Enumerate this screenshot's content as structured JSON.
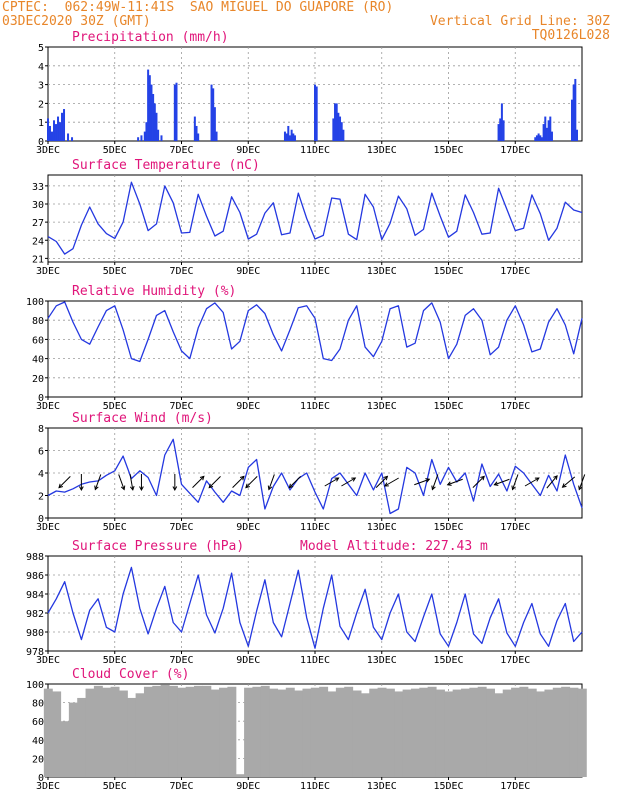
{
  "header": {
    "line1": "CPTEC:  062:49W-11:41S  SAO MIGUEL DO GUAPORE (RO)",
    "line2": "03DEC2020 30Z (GMT)",
    "grid_note": "Vertical Grid Line: 30Z",
    "code": "TQ0126L028"
  },
  "colors": {
    "header": "#e8862a",
    "title": "#e0157a",
    "series": "#2438e0",
    "bars": "#2442e6",
    "cloud": "#a9a9a9",
    "wind_arrow": "#000000",
    "grid": "#9a9a9a"
  },
  "model_altitude": "Model Altitude: 227.43 m",
  "x_ticks": [
    "3DEC",
    "5DEC",
    "7DEC",
    "9DEC",
    "11DEC",
    "13DEC",
    "15DEC",
    "17DEC"
  ],
  "chart_data": [
    {
      "type": "bar",
      "title": "Precipitation (mm/h)",
      "ylim": [
        0,
        5
      ],
      "yticks": [
        0,
        1,
        2,
        3,
        4,
        5
      ],
      "x_days": [
        0.0,
        0.06,
        0.12,
        0.18,
        0.24,
        0.3,
        0.36,
        0.42,
        0.48,
        0.6,
        0.72,
        2.7,
        2.8,
        2.9,
        2.95,
        3.0,
        3.05,
        3.1,
        3.15,
        3.2,
        3.25,
        3.3,
        3.4,
        3.8,
        3.85,
        4.4,
        4.45,
        4.5,
        4.9,
        4.95,
        5.0,
        5.05,
        7.1,
        7.15,
        7.2,
        7.25,
        7.3,
        7.35,
        7.4,
        8.0,
        8.05,
        8.55,
        8.6,
        8.65,
        8.7,
        8.75,
        8.8,
        8.85,
        13.5,
        13.55,
        13.6,
        13.65,
        14.6,
        14.65,
        14.7,
        14.75,
        14.8,
        14.85,
        14.9,
        14.95,
        15.0,
        15.05,
        15.1,
        15.7,
        15.75,
        15.8,
        15.85
      ],
      "values": [
        1.2,
        0.8,
        0.5,
        1.1,
        0.9,
        1.3,
        1.0,
        1.5,
        1.7,
        0.4,
        0.2,
        0.2,
        0.3,
        0.5,
        1.0,
        3.8,
        3.5,
        3.0,
        2.5,
        2.0,
        1.5,
        0.6,
        0.3,
        3.0,
        3.1,
        1.3,
        0.8,
        0.4,
        3.0,
        2.8,
        1.8,
        0.5,
        0.5,
        0.4,
        0.8,
        0.3,
        0.6,
        0.4,
        0.3,
        3.0,
        2.9,
        1.2,
        2.0,
        2.0,
        1.5,
        1.3,
        1.0,
        0.6,
        0.9,
        1.2,
        2.0,
        1.1,
        0.2,
        0.3,
        0.4,
        0.3,
        0.2,
        0.9,
        1.3,
        0.7,
        1.1,
        1.3,
        0.5,
        2.2,
        3.0,
        3.3,
        0.6
      ]
    },
    {
      "type": "line",
      "title": "Surface Temperature (nC)",
      "ylim": [
        20.4,
        34.8
      ],
      "yticks": [
        21,
        24,
        27,
        30,
        33
      ],
      "x_days": [
        0.0,
        0.25,
        0.5,
        0.75,
        1.0,
        1.25,
        1.5,
        1.75,
        2.0,
        2.25,
        2.5,
        2.75,
        3.0,
        3.25,
        3.5,
        3.75,
        4.0,
        4.25,
        4.5,
        4.75,
        5.0,
        5.25,
        5.5,
        5.75,
        6.0,
        6.25,
        6.5,
        6.75,
        7.0,
        7.25,
        7.5,
        7.75,
        8.0,
        8.25,
        8.5,
        8.75,
        9.0,
        9.25,
        9.5,
        9.75,
        10.0,
        10.25,
        10.5,
        10.75,
        11.0,
        11.25,
        11.5,
        11.75,
        12.0,
        12.25,
        12.5,
        12.75,
        13.0,
        13.25,
        13.5,
        13.75,
        14.0,
        14.25,
        14.5,
        14.75,
        15.0,
        15.25,
        15.5,
        15.75,
        16.0
      ],
      "values": [
        24.6,
        23.8,
        21.7,
        22.6,
        26.5,
        29.5,
        26.7,
        25.1,
        24.3,
        27.0,
        33.6,
        30.0,
        25.6,
        26.7,
        33.0,
        30.2,
        25.2,
        25.3,
        31.6,
        28.0,
        24.7,
        25.5,
        31.2,
        28.6,
        24.2,
        25.0,
        28.5,
        30.2,
        24.9,
        25.2,
        31.8,
        27.6,
        24.2,
        24.8,
        31.0,
        30.8,
        25.0,
        24.1,
        31.6,
        29.5,
        24.1,
        26.8,
        31.3,
        29.2,
        24.8,
        25.8,
        31.8,
        28.0,
        24.5,
        25.5,
        31.5,
        28.6,
        25.0,
        25.2,
        32.6,
        29.1,
        25.6,
        26.0,
        31.5,
        28.4,
        24.0,
        26.0,
        30.3,
        29.0,
        28.6
      ]
    },
    {
      "type": "line",
      "title": "Relative Humidity (%)",
      "ylim": [
        0,
        100
      ],
      "yticks": [
        0,
        20,
        40,
        60,
        80,
        100
      ],
      "x_days": [
        0.0,
        0.25,
        0.5,
        0.75,
        1.0,
        1.25,
        1.5,
        1.75,
        2.0,
        2.25,
        2.5,
        2.75,
        3.0,
        3.25,
        3.5,
        3.75,
        4.0,
        4.25,
        4.5,
        4.75,
        5.0,
        5.25,
        5.5,
        5.75,
        6.0,
        6.25,
        6.5,
        6.75,
        7.0,
        7.25,
        7.5,
        7.75,
        8.0,
        8.25,
        8.5,
        8.75,
        9.0,
        9.25,
        9.5,
        9.75,
        10.0,
        10.25,
        10.5,
        10.75,
        11.0,
        11.25,
        11.5,
        11.75,
        12.0,
        12.25,
        12.5,
        12.75,
        13.0,
        13.25,
        13.5,
        13.75,
        14.0,
        14.25,
        14.5,
        14.75,
        15.0,
        15.25,
        15.5,
        15.75,
        16.0
      ],
      "values": [
        82,
        95,
        99,
        78,
        60,
        55,
        73,
        90,
        95,
        70,
        40,
        37,
        60,
        85,
        90,
        68,
        48,
        40,
        72,
        92,
        98,
        88,
        50,
        58,
        90,
        96,
        87,
        65,
        48,
        70,
        93,
        95,
        82,
        40,
        38,
        50,
        80,
        95,
        52,
        42,
        58,
        92,
        95,
        52,
        56,
        90,
        98,
        78,
        40,
        55,
        85,
        92,
        80,
        44,
        52,
        80,
        95,
        75,
        47,
        50,
        78,
        92,
        75,
        45,
        82
      ]
    },
    {
      "type": "line",
      "title": "Surface Wind (m/s)",
      "ylim": [
        0,
        8
      ],
      "yticks": [
        0,
        2,
        4,
        6,
        8
      ],
      "x_days": [
        0.0,
        0.25,
        0.5,
        0.75,
        1.0,
        1.25,
        1.5,
        1.75,
        2.0,
        2.25,
        2.5,
        2.75,
        3.0,
        3.25,
        3.5,
        3.75,
        4.0,
        4.25,
        4.5,
        4.75,
        5.0,
        5.25,
        5.5,
        5.75,
        6.0,
        6.25,
        6.5,
        6.75,
        7.0,
        7.25,
        7.5,
        7.75,
        8.0,
        8.25,
        8.5,
        8.75,
        9.0,
        9.25,
        9.5,
        9.75,
        10.0,
        10.25,
        10.5,
        10.75,
        11.0,
        11.25,
        11.5,
        11.75,
        12.0,
        12.25,
        12.5,
        12.75,
        13.0,
        13.25,
        13.5,
        13.75,
        14.0,
        14.25,
        14.5,
        14.75,
        15.0,
        15.25,
        15.5,
        15.75,
        16.0
      ],
      "values": [
        2.0,
        2.4,
        2.3,
        2.6,
        3.0,
        3.2,
        3.3,
        3.8,
        4.2,
        5.5,
        3.5,
        4.2,
        3.6,
        2.0,
        5.6,
        7.0,
        3.0,
        2.2,
        1.4,
        3.3,
        2.3,
        1.4,
        2.4,
        2.0,
        4.5,
        5.2,
        0.8,
        2.8,
        4.0,
        2.5,
        3.5,
        4.0,
        2.3,
        0.8,
        3.5,
        4.0,
        3.0,
        2.0,
        4.0,
        2.5,
        4.0,
        0.4,
        0.8,
        4.5,
        4.0,
        2.0,
        5.2,
        3.0,
        4.5,
        3.2,
        4.0,
        1.5,
        4.8,
        2.8,
        3.9,
        2.4,
        4.6,
        4.0,
        3.0,
        2.0,
        3.8,
        2.4,
        5.6,
        3.0,
        0.9
      ],
      "arrow_x_days": [
        0.5,
        1.0,
        1.5,
        2.2,
        2.5,
        2.8,
        3.8,
        4.5,
        5.0,
        5.7,
        6.1,
        6.7,
        7.4,
        8.5,
        9.0,
        10.0,
        10.3,
        11.2,
        11.6,
        12.2,
        12.9,
        13.6,
        14.0,
        14.5,
        15.1,
        15.6,
        16.0
      ],
      "arrow_dir_deg": [
        225,
        180,
        200,
        160,
        170,
        180,
        180,
        45,
        225,
        45,
        225,
        200,
        225,
        60,
        60,
        45,
        240,
        70,
        200,
        250,
        45,
        250,
        200,
        60,
        40,
        230,
        200
      ]
    },
    {
      "type": "line",
      "title": "Surface Pressure (hPa)",
      "ylim": [
        978,
        988
      ],
      "yticks": [
        978,
        980,
        982,
        984,
        986,
        988
      ],
      "x_days": [
        0.0,
        0.25,
        0.5,
        0.75,
        1.0,
        1.25,
        1.5,
        1.75,
        2.0,
        2.25,
        2.5,
        2.75,
        3.0,
        3.25,
        3.5,
        3.75,
        4.0,
        4.25,
        4.5,
        4.75,
        5.0,
        5.25,
        5.5,
        5.75,
        6.0,
        6.25,
        6.5,
        6.75,
        7.0,
        7.25,
        7.5,
        7.75,
        8.0,
        8.25,
        8.5,
        8.75,
        9.0,
        9.25,
        9.5,
        9.75,
        10.0,
        10.25,
        10.5,
        10.75,
        11.0,
        11.25,
        11.5,
        11.75,
        12.0,
        12.25,
        12.5,
        12.75,
        13.0,
        13.25,
        13.5,
        13.75,
        14.0,
        14.25,
        14.5,
        14.75,
        15.0,
        15.25,
        15.5,
        15.75,
        16.0
      ],
      "values": [
        982.0,
        983.5,
        985.3,
        982.0,
        979.2,
        982.3,
        983.5,
        980.5,
        980.0,
        984.0,
        986.8,
        982.5,
        979.8,
        982.5,
        984.8,
        981.0,
        980.0,
        983.0,
        986.0,
        981.8,
        979.9,
        982.5,
        986.2,
        981.0,
        978.5,
        982.2,
        985.5,
        981.0,
        979.5,
        983.0,
        986.5,
        981.5,
        978.3,
        982.5,
        986.0,
        980.6,
        979.2,
        982.0,
        984.5,
        980.5,
        979.2,
        982.0,
        984.0,
        980.0,
        979.0,
        981.6,
        984.0,
        979.8,
        978.5,
        981.0,
        984.0,
        979.8,
        978.8,
        981.5,
        983.5,
        979.9,
        978.5,
        981.0,
        983.0,
        979.8,
        978.5,
        981.2,
        983.0,
        979.0,
        980.0
      ]
    },
    {
      "type": "area",
      "title": "Cloud Cover (%)",
      "ylim": [
        0,
        100
      ],
      "yticks": [
        0,
        20,
        40,
        60,
        80,
        100
      ],
      "x_days": [
        0.0,
        0.25,
        0.5,
        0.75,
        1.0,
        1.25,
        1.5,
        1.75,
        2.0,
        2.25,
        2.5,
        2.75,
        3.0,
        3.25,
        3.5,
        3.75,
        4.0,
        4.25,
        4.5,
        4.75,
        5.0,
        5.25,
        5.5,
        5.75,
        6.0,
        6.25,
        6.5,
        6.75,
        7.0,
        7.25,
        7.5,
        7.75,
        8.0,
        8.25,
        8.5,
        8.75,
        9.0,
        9.25,
        9.5,
        9.75,
        10.0,
        10.25,
        10.5,
        10.75,
        11.0,
        11.25,
        11.5,
        11.75,
        12.0,
        12.25,
        12.5,
        12.75,
        13.0,
        13.25,
        13.5,
        13.75,
        14.0,
        14.25,
        14.5,
        14.75,
        15.0,
        15.25,
        15.5,
        15.75,
        16.0
      ],
      "values": [
        95,
        92,
        60,
        80,
        85,
        95,
        98,
        96,
        97,
        93,
        85,
        90,
        97,
        98,
        99,
        98,
        96,
        97,
        98,
        98,
        94,
        96,
        97,
        3,
        96,
        97,
        98,
        95,
        94,
        96,
        93,
        95,
        96,
        97,
        92,
        96,
        97,
        93,
        90,
        95,
        96,
        95,
        92,
        94,
        95,
        96,
        97,
        94,
        92,
        94,
        95,
        96,
        97,
        95,
        90,
        94,
        96,
        97,
        95,
        92,
        94,
        96,
        97,
        96,
        95
      ]
    }
  ]
}
